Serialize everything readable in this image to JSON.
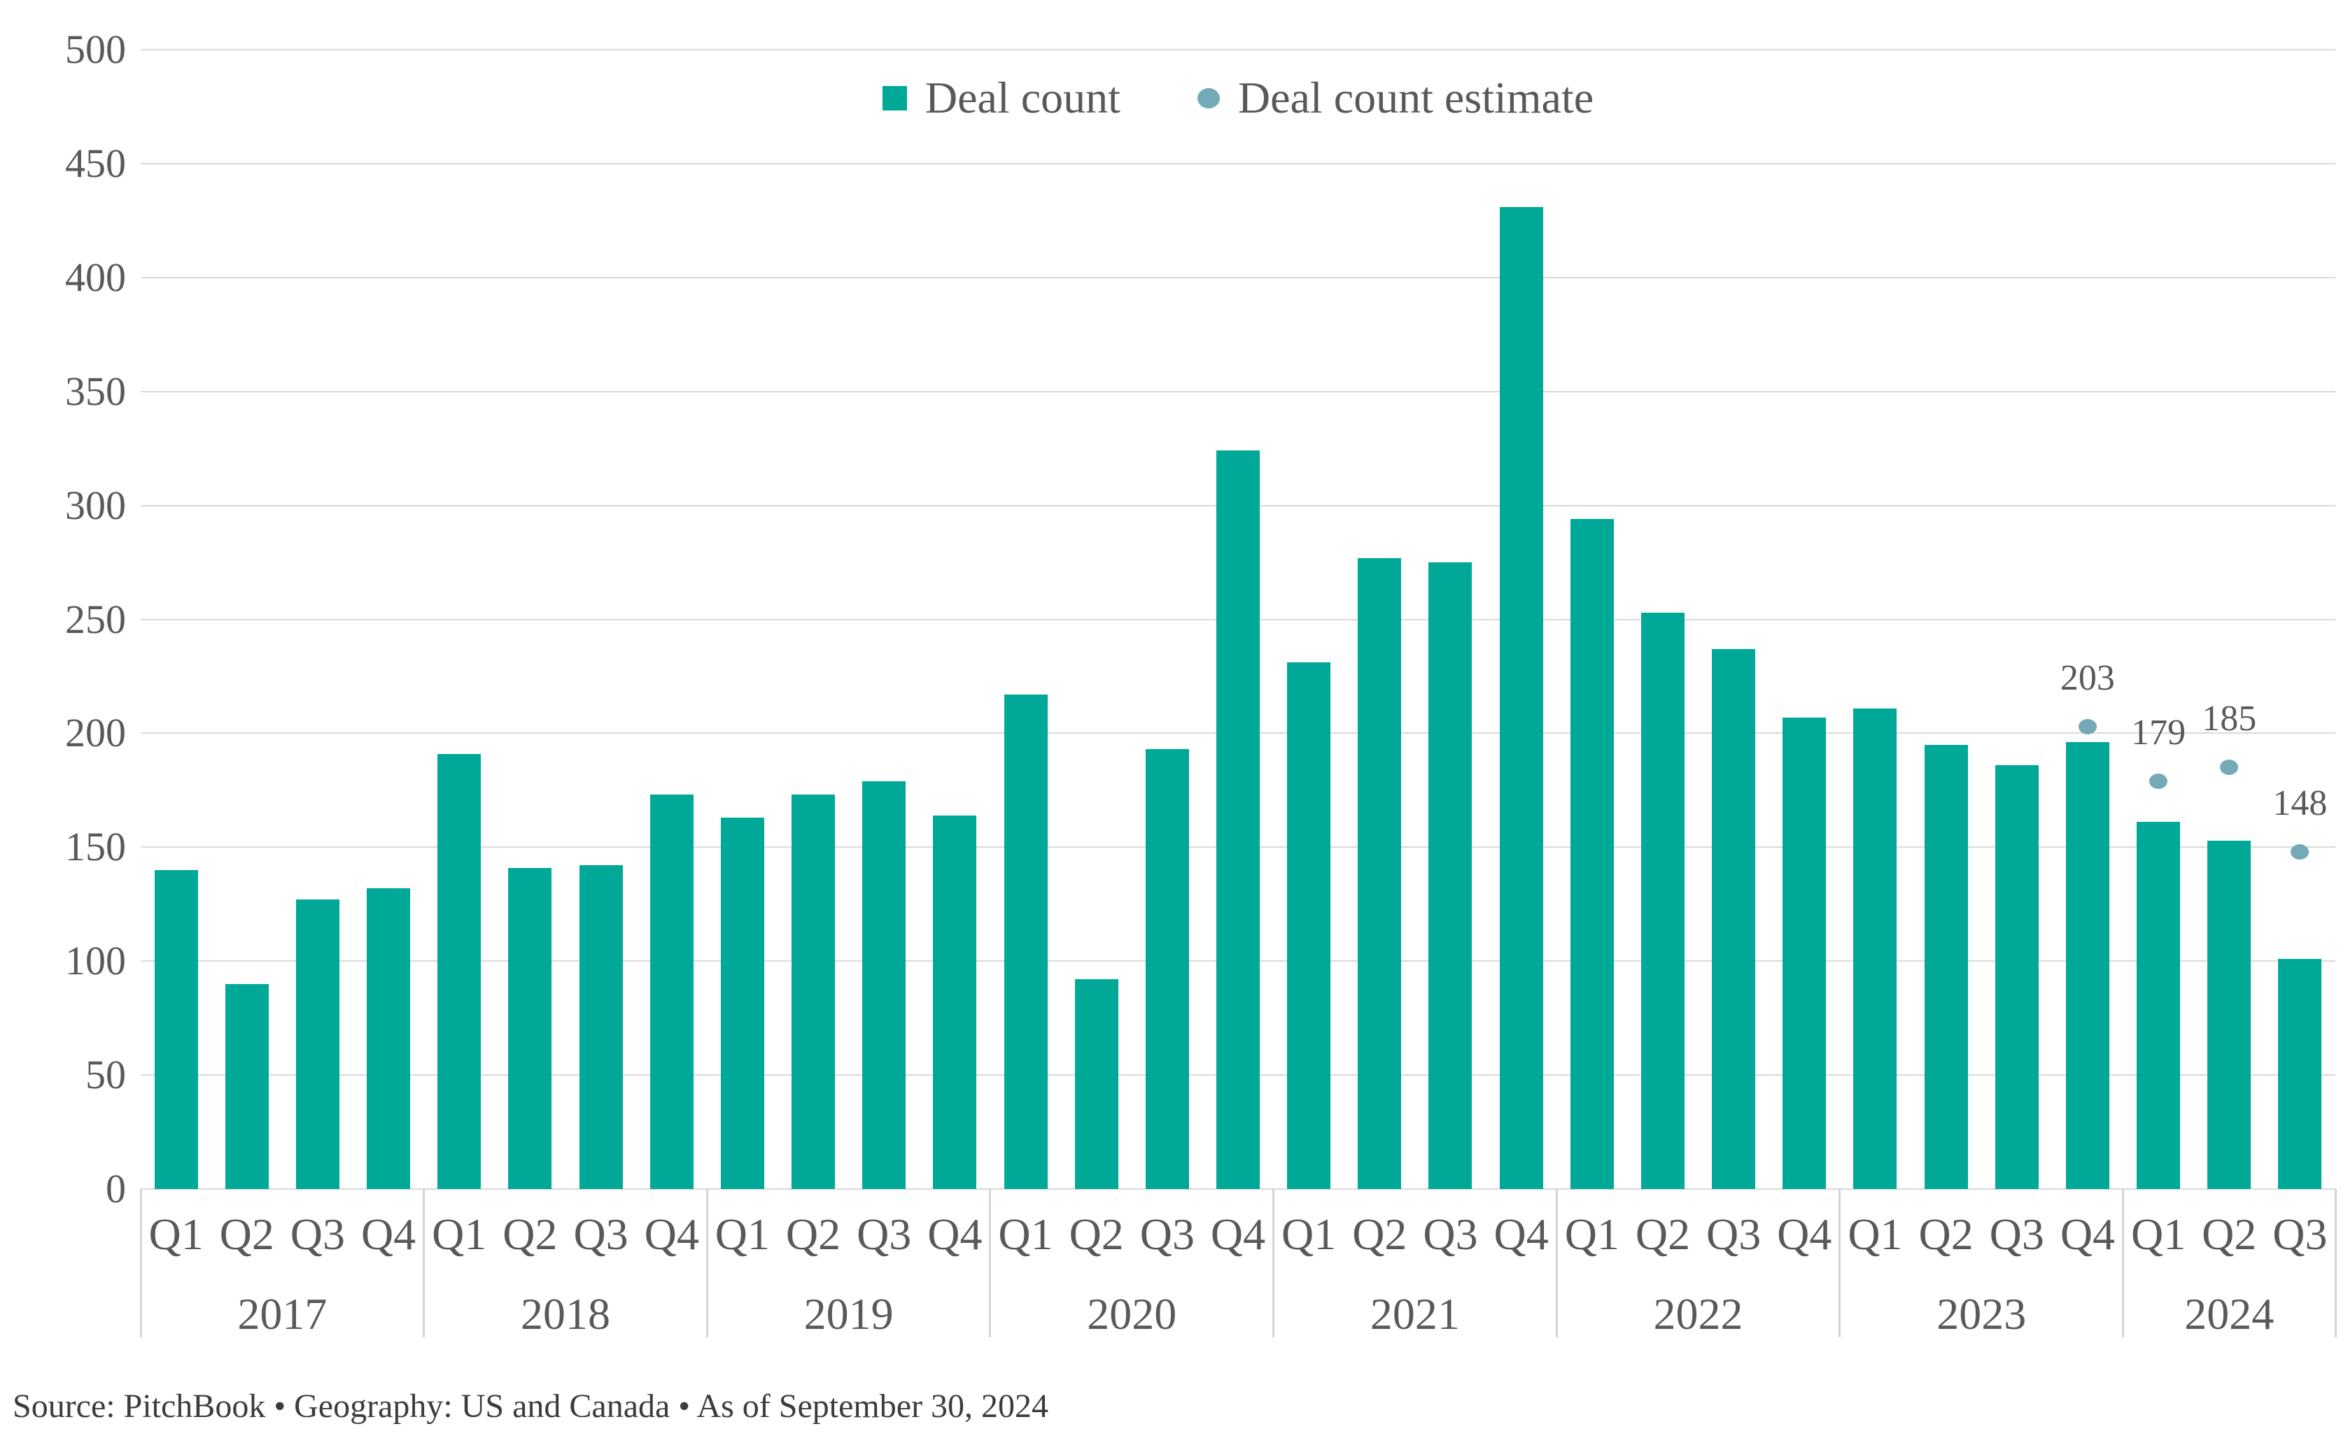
{
  "legend": {
    "items": [
      {
        "label": "Deal count",
        "marker": "square"
      },
      {
        "label": "Deal count estimate",
        "marker": "dot"
      }
    ]
  },
  "y_axis": {
    "ticks": [
      500,
      450,
      400,
      350,
      300,
      250,
      200,
      150,
      100,
      50,
      0
    ]
  },
  "source_line": "Source: PitchBook • Geography: US and Canada • As of September 30, 2024",
  "colors": {
    "bar": "#00A897",
    "estimate_dot": "#74A9B8",
    "axis_text": "#595959",
    "gridline": "#D9D9D9",
    "separator": "#D4D4D4",
    "source_text": "#3C3C3C"
  },
  "chart_data": {
    "type": "bar",
    "title": "",
    "xlabel": "",
    "ylabel": "",
    "ylim": [
      0,
      500
    ],
    "grid": true,
    "legend_position": "top-center",
    "series_names": [
      "Deal count",
      "Deal count estimate"
    ],
    "years": [
      {
        "year": "2017",
        "quarters": [
          "Q1",
          "Q2",
          "Q3",
          "Q4"
        ],
        "deal_count": [
          140,
          90,
          127,
          132
        ],
        "deal_count_estimate": [
          null,
          null,
          null,
          null
        ]
      },
      {
        "year": "2018",
        "quarters": [
          "Q1",
          "Q2",
          "Q3",
          "Q4"
        ],
        "deal_count": [
          191,
          141,
          142,
          173
        ],
        "deal_count_estimate": [
          null,
          null,
          null,
          null
        ]
      },
      {
        "year": "2019",
        "quarters": [
          "Q1",
          "Q2",
          "Q3",
          "Q4"
        ],
        "deal_count": [
          163,
          173,
          179,
          164
        ],
        "deal_count_estimate": [
          null,
          null,
          null,
          null
        ]
      },
      {
        "year": "2020",
        "quarters": [
          "Q1",
          "Q2",
          "Q3",
          "Q4"
        ],
        "deal_count": [
          217,
          92,
          193,
          324
        ],
        "deal_count_estimate": [
          null,
          null,
          null,
          null
        ]
      },
      {
        "year": "2021",
        "quarters": [
          "Q1",
          "Q2",
          "Q3",
          "Q4"
        ],
        "deal_count": [
          231,
          277,
          275,
          431
        ],
        "deal_count_estimate": [
          null,
          null,
          null,
          null
        ]
      },
      {
        "year": "2022",
        "quarters": [
          "Q1",
          "Q2",
          "Q3",
          "Q4"
        ],
        "deal_count": [
          294,
          253,
          237,
          207
        ],
        "deal_count_estimate": [
          null,
          null,
          null,
          null
        ]
      },
      {
        "year": "2023",
        "quarters": [
          "Q1",
          "Q2",
          "Q3",
          "Q4"
        ],
        "deal_count": [
          211,
          195,
          186,
          196
        ],
        "deal_count_estimate": [
          null,
          null,
          null,
          203
        ]
      },
      {
        "year": "2024",
        "quarters": [
          "Q1",
          "Q2",
          "Q3"
        ],
        "deal_count": [
          161,
          153,
          101
        ],
        "deal_count_estimate": [
          179,
          185,
          148
        ]
      }
    ]
  }
}
